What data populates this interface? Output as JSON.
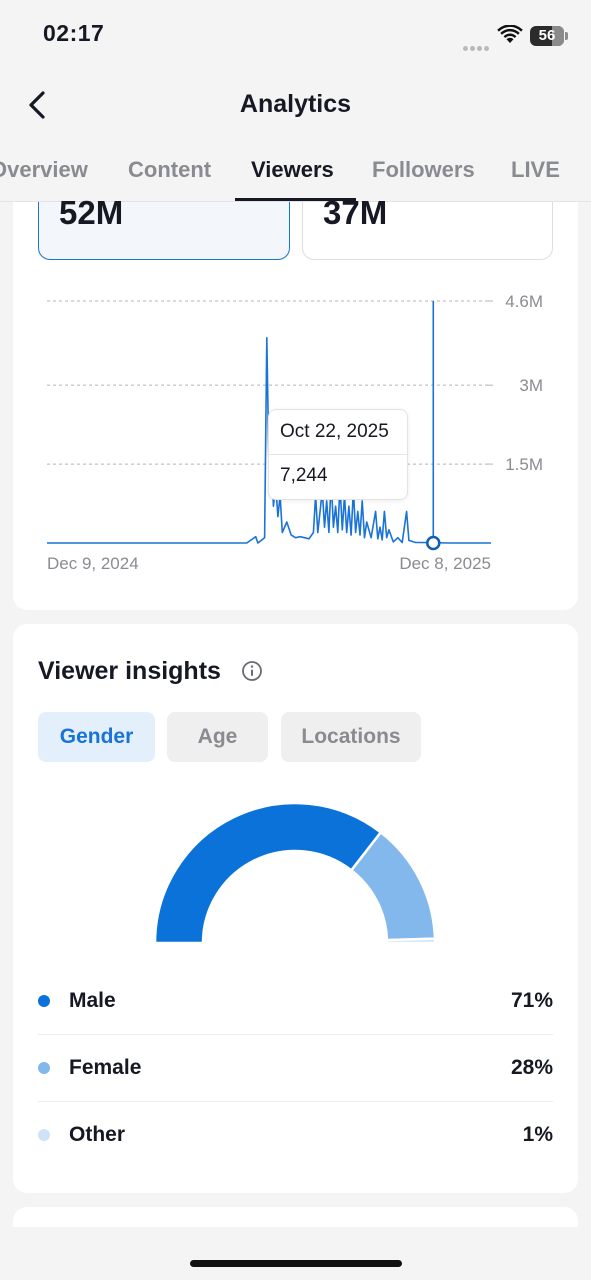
{
  "status_bar": {
    "time": "02:17",
    "battery": "56"
  },
  "header": {
    "title": "Analytics"
  },
  "tabs": [
    {
      "label": "Overview"
    },
    {
      "label": "Content"
    },
    {
      "label": "Viewers"
    },
    {
      "label": "Followers"
    },
    {
      "label": "LIVE"
    }
  ],
  "active_tab": "Viewers",
  "metrics": [
    {
      "value": "52M",
      "selected": true
    },
    {
      "value": "37M",
      "selected": false
    }
  ],
  "chart_data": {
    "type": "line",
    "x_start": "Dec 9, 2024",
    "x_end": "Dec 8, 2025",
    "y_ticks": [
      "4.6M",
      "3M",
      "1.5M"
    ],
    "ylim": [
      0,
      4600000
    ],
    "grid": true,
    "color": "#1a73d6",
    "series_points": [
      [
        0,
        0
      ],
      [
        0.45,
        0
      ],
      [
        0.47,
        120000
      ],
      [
        0.475,
        0
      ],
      [
        0.49,
        100000
      ],
      [
        0.495,
        3900000
      ],
      [
        0.5,
        1400000
      ],
      [
        0.505,
        2200000
      ],
      [
        0.51,
        700000
      ],
      [
        0.515,
        1100000
      ],
      [
        0.52,
        500000
      ],
      [
        0.525,
        900000
      ],
      [
        0.53,
        200000
      ],
      [
        0.54,
        400000
      ],
      [
        0.55,
        150000
      ],
      [
        0.56,
        100000
      ],
      [
        0.57,
        120000
      ],
      [
        0.58,
        100000
      ],
      [
        0.59,
        80000
      ],
      [
        0.6,
        200000
      ],
      [
        0.605,
        900000
      ],
      [
        0.61,
        200000
      ],
      [
        0.62,
        1000000
      ],
      [
        0.625,
        300000
      ],
      [
        0.63,
        800000
      ],
      [
        0.635,
        200000
      ],
      [
        0.64,
        1200000
      ],
      [
        0.645,
        300000
      ],
      [
        0.65,
        700000
      ],
      [
        0.655,
        200000
      ],
      [
        0.66,
        1100000
      ],
      [
        0.665,
        250000
      ],
      [
        0.67,
        900000
      ],
      [
        0.675,
        200000
      ],
      [
        0.68,
        700000
      ],
      [
        0.685,
        150000
      ],
      [
        0.69,
        1000000
      ],
      [
        0.695,
        200000
      ],
      [
        0.7,
        600000
      ],
      [
        0.705,
        150000
      ],
      [
        0.71,
        800000
      ],
      [
        0.715,
        100000
      ],
      [
        0.72,
        400000
      ],
      [
        0.73,
        100000
      ],
      [
        0.74,
        600000
      ],
      [
        0.745,
        80000
      ],
      [
        0.75,
        300000
      ],
      [
        0.755,
        60000
      ],
      [
        0.76,
        600000
      ],
      [
        0.765,
        100000
      ],
      [
        0.77,
        250000
      ],
      [
        0.78,
        20000
      ],
      [
        0.79,
        100000
      ],
      [
        0.8,
        10000
      ],
      [
        0.81,
        600000
      ],
      [
        0.815,
        50000
      ],
      [
        0.83,
        10000
      ],
      [
        0.87,
        7244
      ],
      [
        0.9,
        0
      ],
      [
        1.0,
        0
      ]
    ],
    "cursor": {
      "x": 0.87,
      "date": "Oct 22, 2025",
      "value": "7,244"
    }
  },
  "viewer_insights": {
    "title": "Viewer insights",
    "filters": [
      {
        "label": "Gender",
        "active": true
      },
      {
        "label": "Age",
        "active": false
      },
      {
        "label": "Locations",
        "active": false
      }
    ],
    "gender": [
      {
        "label": "Male",
        "value": "71%",
        "share": 71,
        "color": "#0a72d9"
      },
      {
        "label": "Female",
        "value": "28%",
        "share": 28,
        "color": "#82b8ec"
      },
      {
        "label": "Other",
        "value": "1%",
        "share": 1,
        "color": "#cfe3f7"
      }
    ]
  }
}
